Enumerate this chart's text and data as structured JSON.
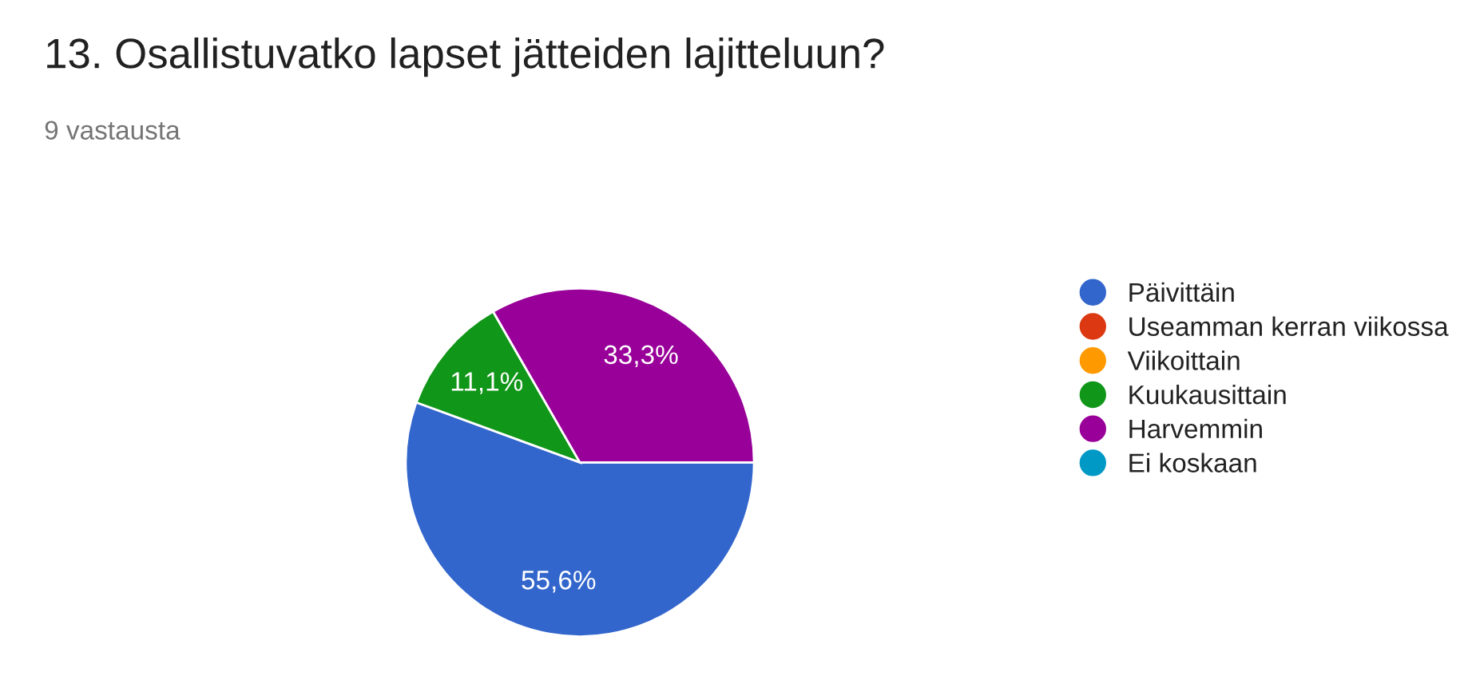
{
  "chart_data": {
    "type": "pie",
    "title": "13. Osallistuvatko lapset jätteiden lajitteluun?",
    "subtitle": "9 vastausta",
    "categories": [
      "Päivittäin",
      "Useamman kerran viikossa",
      "Viikoittain",
      "Kuukausittain",
      "Harvemmin",
      "Ei koskaan"
    ],
    "values": [
      55.6,
      0,
      0,
      11.1,
      33.3,
      0
    ],
    "colors": [
      "#3366cc",
      "#dc3912",
      "#ff9900",
      "#109618",
      "#990099",
      "#0099c6"
    ],
    "value_labels": [
      "55,6%",
      null,
      null,
      "11,1%",
      "33,3%",
      null
    ],
    "legend": "right"
  }
}
